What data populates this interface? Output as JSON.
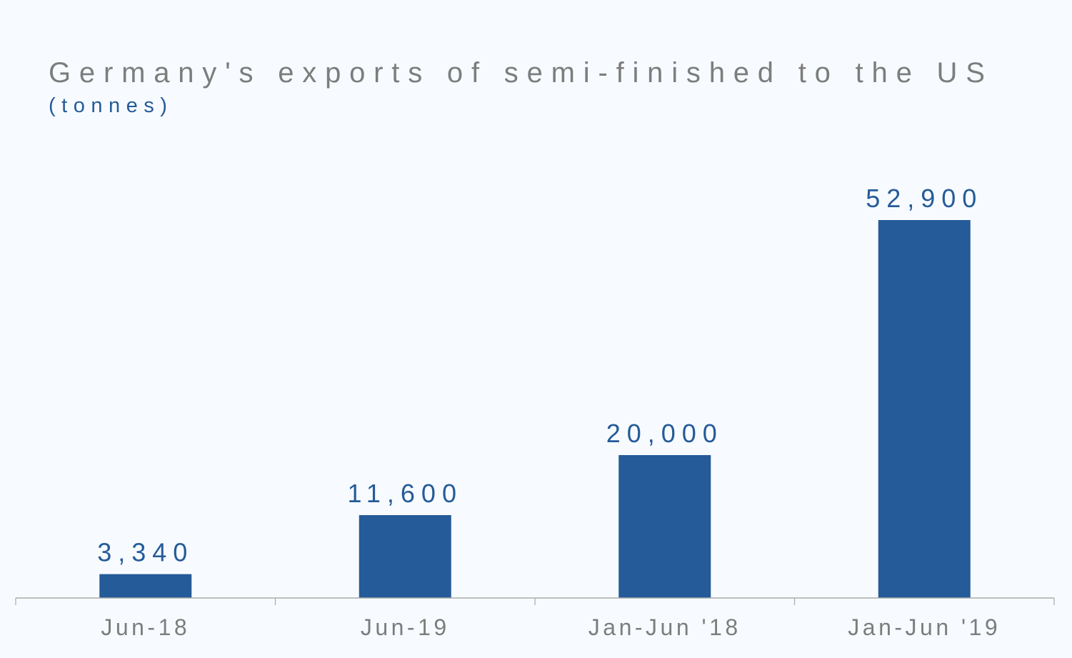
{
  "chart_data": {
    "type": "bar",
    "title": "Germany's exports of semi-finished to the US",
    "subtitle": "(tonnes)",
    "categories": [
      "Jun-18",
      "Jun-19",
      "Jan-Jun '18",
      "Jan-Jun '19"
    ],
    "values": [
      3340,
      11600,
      20000,
      52900
    ],
    "value_labels": [
      "3,340",
      "11,600",
      "20,000",
      "52,900"
    ],
    "ylim": [
      0,
      60000
    ],
    "grid": false,
    "legend": "none",
    "colors": {
      "bar": "#245b98",
      "title": "#7d7d7d",
      "subtitle": "#255b99",
      "value_label": "#255b99",
      "category_label": "#7d7d7d",
      "background": "#f7fbff"
    }
  }
}
